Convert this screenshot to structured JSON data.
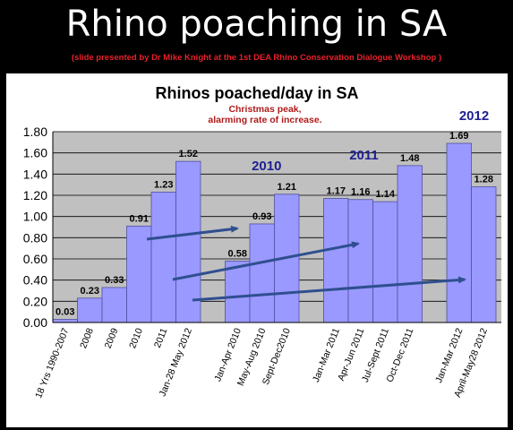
{
  "slide": {
    "title": "Rhino poaching in SA",
    "subtitle": "(slide presented by Dr Mike Knight at the 1st DEA Rhino Conservation Dialogue Workshop )"
  },
  "chart_data": {
    "type": "bar",
    "title": "Rhinos poached/day in SA",
    "xlabel": "",
    "ylabel": "",
    "ylim": [
      0,
      1.8
    ],
    "yticks": [
      "0.00",
      "0.20",
      "0.40",
      "0.60",
      "0.80",
      "1.00",
      "1.20",
      "1.40",
      "1.60",
      "1.80"
    ],
    "grid": true,
    "legend": "none",
    "groups": [
      {
        "label": "",
        "categories": [
          "18 Yrs 1990-2007",
          "2008",
          "2009",
          "2010",
          "2011",
          "Jan-28 May 2012"
        ],
        "values": [
          0.03,
          0.23,
          0.33,
          0.91,
          1.23,
          1.52
        ]
      },
      {
        "label": "2010",
        "categories": [
          "Jan-Apr 2010",
          "May-Aug 2010",
          "Sept-Dec2010"
        ],
        "values": [
          0.58,
          0.93,
          1.21
        ]
      },
      {
        "label": "2011",
        "categories": [
          "Jan-Mar 2011",
          "Apr-Jun 2011",
          "Jul-Sept 2011",
          "Oct-Dec 2011"
        ],
        "values": [
          1.17,
          1.16,
          1.14,
          1.48
        ]
      },
      {
        "label": "2012",
        "categories": [
          "Jan-Mar 2012",
          "April-May28 2012"
        ],
        "values": [
          1.69,
          1.28
        ]
      }
    ],
    "data_labels": [
      "0.03",
      "0.23",
      "0.33",
      "0.91",
      "1.23",
      "1.52",
      "0.58",
      "0.93",
      "1.21",
      "1.17",
      "1.16",
      "1.14",
      "1.48",
      "1.69",
      "1.28"
    ],
    "annotation": {
      "line1": "Christmas peak,",
      "line2": "alarming rate of increase."
    },
    "colors": {
      "bar": "#9999ff",
      "bar_stroke": "#5050a0",
      "plot_bg": "#c0c0c0",
      "arrow": "#2f4f8f",
      "group_label": "#1f1f8f",
      "annotation": "#b01a1a"
    }
  }
}
